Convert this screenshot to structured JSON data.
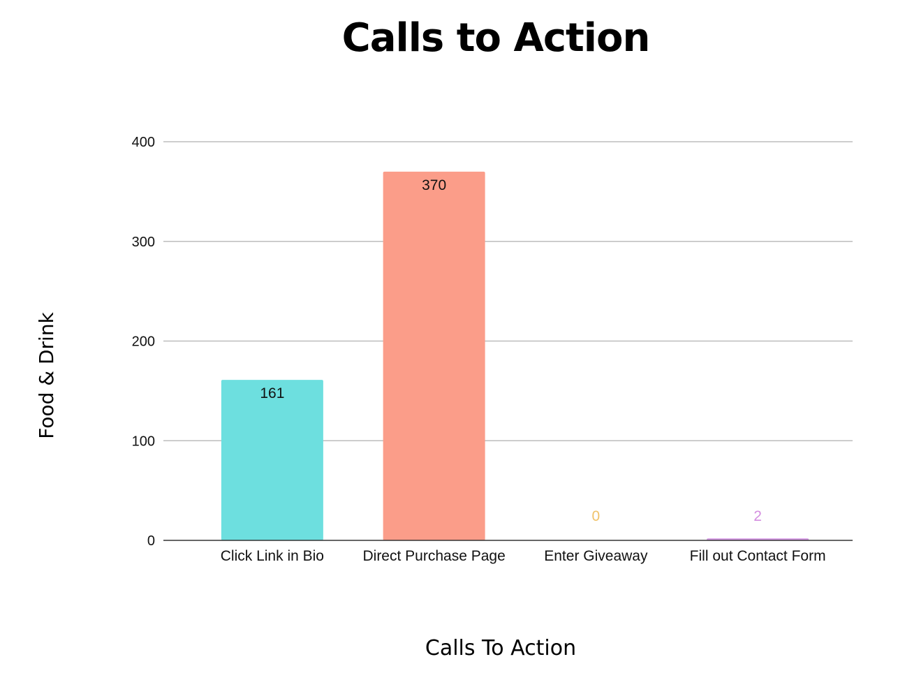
{
  "chart_data": {
    "type": "bar",
    "title": "Calls to Action",
    "xlabel": "Calls To Action",
    "ylabel": "Food & Drink",
    "categories": [
      "Click Link in Bio",
      "Direct Purchase Page",
      "Enter Giveaway",
      "Fill out Contact Form"
    ],
    "values": [
      161,
      370,
      0,
      2
    ],
    "data_labels": [
      "161",
      "370",
      "0",
      "2"
    ],
    "colors": [
      "#6ddfdf",
      "#fb9d89",
      "#f5c87a",
      "#d79be6"
    ],
    "label_colors": [
      "#111111",
      "#111111",
      "#f0c36a",
      "#d48ee0"
    ],
    "ylim": [
      0,
      400
    ],
    "yticks": [
      0,
      100,
      200,
      300,
      400
    ],
    "ytick_labels": [
      "0",
      "100",
      "200",
      "300",
      "400"
    ],
    "grid": true,
    "legend": "none"
  }
}
